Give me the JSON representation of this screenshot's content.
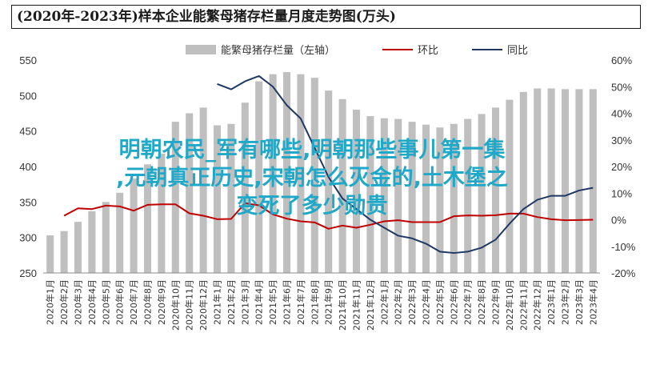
{
  "chart_data": {
    "type": "bar",
    "title": "(2020年-2023年)样本企业能繁母猪存栏量月度走势图(万头)",
    "categories": [
      "2020年1月",
      "2020年2月",
      "2020年3月",
      "2020年4月",
      "2020年5月",
      "2020年6月",
      "2020年7月",
      "2020年8月",
      "2020年9月",
      "2020年10月",
      "2020年11月",
      "2020年12月",
      "2021年1月",
      "2021年2月",
      "2021年3月",
      "2021年4月",
      "2021年5月",
      "2021年6月",
      "2021年7月",
      "2021年8月",
      "2021年9月",
      "2021年10月",
      "2021年11月",
      "2021年12月",
      "2022年1月",
      "2022年2月",
      "2022年3月",
      "2022年4月",
      "2022年5月",
      "2022年6月",
      "2022年7月",
      "2022年8月",
      "2022年9月",
      "2022年10月",
      "2022年11月",
      "2022年12月",
      "2023年1月",
      "2023年2月",
      "2023年3月",
      "2023年4月"
    ],
    "left_axis": {
      "ylim": [
        250,
        550
      ],
      "ticks": [
        250,
        300,
        350,
        400,
        450,
        500,
        550
      ]
    },
    "right_axis": {
      "ylim": [
        -20,
        60
      ],
      "ticks": [
        "-20%",
        "-10%",
        "0%",
        "10%",
        "20%",
        "30%",
        "40%",
        "50%",
        "60%"
      ]
    },
    "legend_position": "top",
    "series": [
      {
        "name": "能繁母猪存栏量（左轴）",
        "axis": "left",
        "color": "#bfbfbf",
        "values": [
          303,
          309,
          322,
          337,
          350,
          363,
          383,
          403,
          418,
          463,
          475,
          483,
          458,
          460,
          490,
          520,
          530,
          533,
          530,
          525,
          507,
          495,
          480,
          471,
          468,
          467,
          463,
          459,
          455,
          460,
          467,
          474,
          483,
          494,
          505,
          510,
          510,
          509,
          509,
          509
        ]
      },
      {
        "name": "环比",
        "axis": "right",
        "color": "#c00000",
        "values": [
          null,
          1.5,
          4.3,
          4.0,
          5.3,
          5.0,
          3.4,
          5.6,
          5.8,
          5.8,
          2.4,
          1.5,
          0.2,
          0.3,
          6.2,
          5.4,
          2.0,
          0.4,
          -0.6,
          -1.0,
          -3.4,
          -2.2,
          -3.0,
          -1.9,
          -0.6,
          -0.2,
          -0.9,
          -0.9,
          -0.9,
          1.3,
          1.6,
          1.5,
          1.7,
          2.3,
          2.3,
          1.0,
          0.2,
          -0.2,
          -0.1,
          0.0
        ]
      },
      {
        "name": "同比",
        "axis": "right",
        "color": "#1f3864",
        "values": [
          null,
          null,
          null,
          null,
          null,
          null,
          null,
          null,
          null,
          null,
          null,
          null,
          51,
          49,
          52,
          54,
          50,
          43,
          38,
          27,
          16,
          8,
          4,
          0,
          -3,
          -6,
          -7,
          -9,
          -12,
          -12.5,
          -12,
          -10.5,
          -7.5,
          -1.5,
          4,
          7.5,
          9,
          9,
          11,
          12
        ]
      }
    ]
  },
  "overlay_text": [
    "明朝农民_军有哪些,明朝那些事儿第一集",
    ",元朝真正历史,宋朝怎么灭金的,土木堡之",
    "变死了多少勋贵"
  ]
}
